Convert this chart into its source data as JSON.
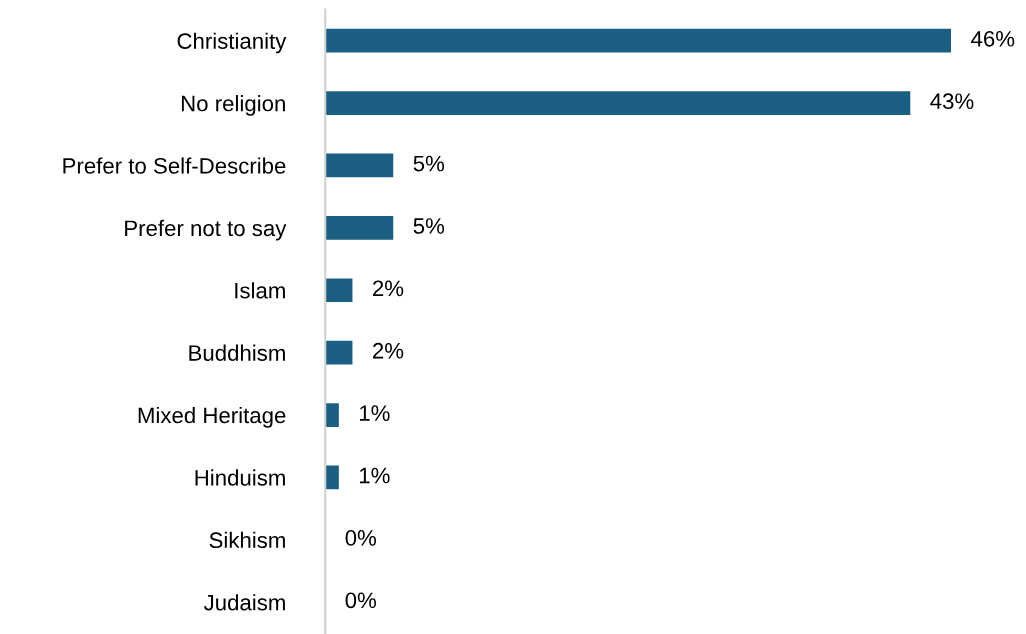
{
  "chart_data": {
    "type": "bar",
    "orientation": "horizontal",
    "categories": [
      "Christianity",
      "No religion",
      "Prefer to Self-Describe",
      "Prefer not to say",
      "Islam",
      "Buddhism",
      "Mixed Heritage",
      "Hinduism",
      "Sikhism",
      "Judaism"
    ],
    "values": [
      46,
      43,
      5,
      5,
      2,
      2,
      1,
      1,
      0,
      0
    ],
    "value_labels": [
      "46%",
      "43%",
      "5%",
      "5%",
      "2%",
      "2%",
      "1%",
      "1%",
      "0%",
      "0%"
    ],
    "color": "#1b5f82",
    "tick_labels": "y",
    "grid": false,
    "legend": false
  }
}
